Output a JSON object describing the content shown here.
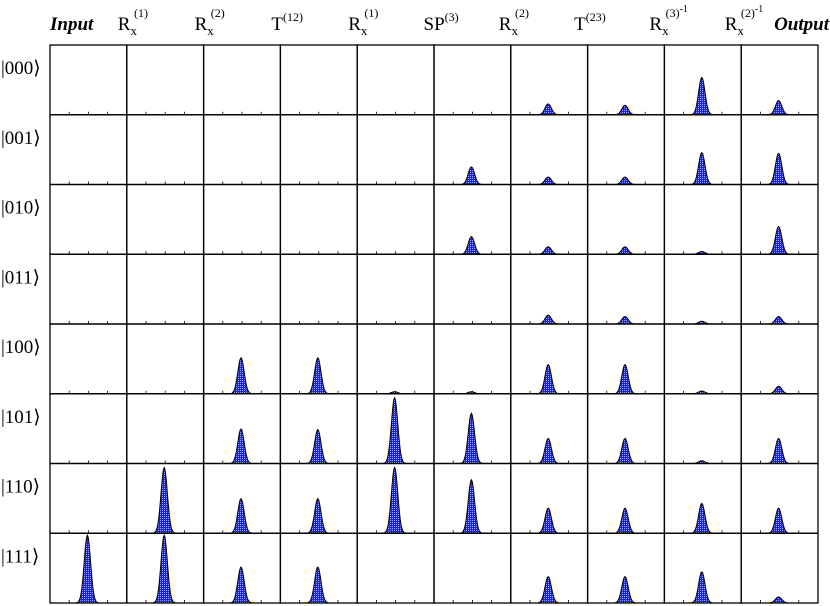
{
  "chart_data": {
    "type": "peak-grid",
    "headers": [
      {
        "base": "Input",
        "emphasis": true
      },
      {
        "base": "R",
        "sub": "x",
        "sup": "(1)"
      },
      {
        "base": "R",
        "sub": "x",
        "sup": "(2)"
      },
      {
        "base": "T",
        "sup": "(12)"
      },
      {
        "base": "R",
        "sub": "x",
        "sup": "(1)"
      },
      {
        "base": "SP",
        "sup": "(3)"
      },
      {
        "base": "R",
        "sub": "x",
        "sup": "(2)"
      },
      {
        "base": "T",
        "sup": "(23)"
      },
      {
        "base": "R",
        "sub": "x",
        "sup": "(3)",
        "sup2": "-1"
      },
      {
        "base": "R",
        "sub": "x",
        "sup": "(2)",
        "sup2": "-1"
      },
      {
        "base": "Output",
        "emphasis": true
      }
    ],
    "rows": [
      "|000⟩",
      "|001⟩",
      "|010⟩",
      "|011⟩",
      "|100⟩",
      "|101⟩",
      "|110⟩",
      "|111⟩"
    ],
    "values": [
      [
        0,
        0,
        0,
        0,
        0,
        0,
        0.16,
        0.14,
        0.55,
        0.21
      ],
      [
        0,
        0,
        0,
        0,
        0,
        0.26,
        0.11,
        0.11,
        0.47,
        0.46
      ],
      [
        0,
        0,
        0,
        0,
        0,
        0.26,
        0.11,
        0.11,
        0.04,
        0.41
      ],
      [
        0,
        0,
        0,
        0,
        0,
        0,
        0.13,
        0.11,
        0.04,
        0.11
      ],
      [
        0,
        0,
        0.53,
        0.53,
        0.03,
        0.03,
        0.43,
        0.43,
        0.04,
        0.11
      ],
      [
        0,
        0,
        0.51,
        0.5,
        0.97,
        0.74,
        0.37,
        0.37,
        0.04,
        0.37
      ],
      [
        0,
        0.97,
        0.51,
        0.51,
        0.97,
        0.79,
        0.37,
        0.37,
        0.44,
        0.37
      ],
      [
        1,
        1,
        0.53,
        0.53,
        0,
        0,
        0.39,
        0.39,
        0.46,
        0.09
      ]
    ],
    "ylim": [
      0,
      1
    ],
    "color": "#1a1aff"
  }
}
